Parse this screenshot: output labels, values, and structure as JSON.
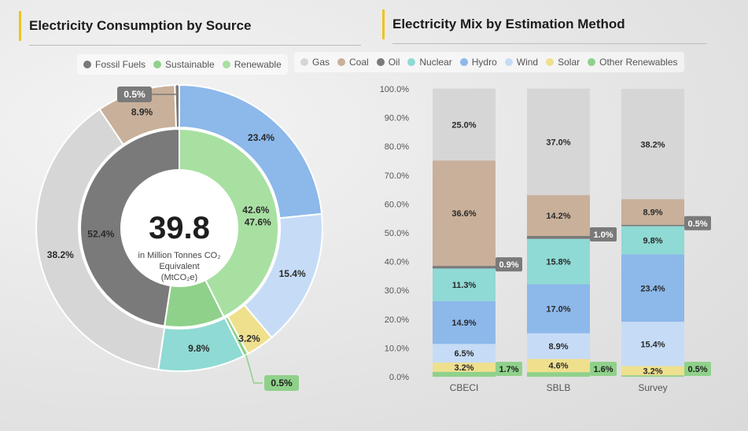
{
  "left": {
    "title": "Electricity Consumption by Source",
    "legend": [
      {
        "name": "Fossil Fuels",
        "color": "#7a7a7a"
      },
      {
        "name": "Sustainable",
        "color": "#8fd18a"
      },
      {
        "name": "Renewable",
        "color": "#a8e0a2"
      }
    ],
    "center_value": "39.8",
    "center_unit_line1": "in Million Tonnes CO₂",
    "center_unit_line2": "Equivalent",
    "center_unit_line3": "(MtCO₂e)"
  },
  "right": {
    "title": "Electricity Mix by Estimation Method",
    "legend": [
      {
        "name": "Gas",
        "color": "#d6d6d6"
      },
      {
        "name": "Coal",
        "color": "#c8b09a"
      },
      {
        "name": "Oil",
        "color": "#7a7a7a"
      },
      {
        "name": "Nuclear",
        "color": "#8fdad4"
      },
      {
        "name": "Hydro",
        "color": "#8db8ea"
      },
      {
        "name": "Wind",
        "color": "#c6dcf6"
      },
      {
        "name": "Solar",
        "color": "#efe08e"
      },
      {
        "name": "Other Renewables",
        "color": "#8fd18a"
      }
    ]
  },
  "chart_data": [
    {
      "type": "pie",
      "title": "Electricity Consumption by Source",
      "inner_ring": [
        {
          "name": "Fossil Fuels",
          "value": 47.6,
          "label": "47.6%",
          "color": "#7a7a7a"
        },
        {
          "name": "Sustainable",
          "value": 52.4,
          "label": "52.4%",
          "color": "#8fd18a"
        }
      ],
      "middle_ring": [
        {
          "name": "Renewable",
          "value": 42.6,
          "label": "42.6%",
          "color": "#a8e0a2"
        },
        {
          "name": "Sustainable",
          "value": 9.8,
          "label": "",
          "color": "#8fd18a"
        },
        {
          "name": "Fossil Fuels",
          "value": 47.6,
          "label": "",
          "color": "#7a7a7a"
        }
      ],
      "outer_ring": [
        {
          "name": "Hydro",
          "value": 23.4,
          "label": "23.4%",
          "color": "#8db8ea"
        },
        {
          "name": "Wind",
          "value": 15.4,
          "label": "15.4%",
          "color": "#c6dcf6"
        },
        {
          "name": "Solar",
          "value": 3.2,
          "label": "3.2%",
          "color": "#efe08e"
        },
        {
          "name": "Other Renewables",
          "value": 0.5,
          "label": "0.5%",
          "color": "#8fd18a"
        },
        {
          "name": "Nuclear",
          "value": 9.8,
          "label": "9.8%",
          "color": "#8fdad4"
        },
        {
          "name": "Gas",
          "value": 38.2,
          "label": "38.2%",
          "color": "#d6d6d6"
        },
        {
          "name": "Coal",
          "value": 8.9,
          "label": "8.9%",
          "color": "#c8b09a"
        },
        {
          "name": "Oil",
          "value": 0.5,
          "label": "0.5%",
          "color": "#7a7a7a"
        }
      ]
    },
    {
      "type": "bar",
      "stacked": true,
      "title": "Electricity Mix by Estimation Method",
      "categories": [
        "CBECI",
        "SBLB",
        "Survey"
      ],
      "ylim": [
        0,
        100
      ],
      "yticks": [
        "0.0%",
        "10.0%",
        "20.0%",
        "30.0%",
        "40.0%",
        "50.0%",
        "60.0%",
        "70.0%",
        "80.0%",
        "90.0%",
        "100.0%"
      ],
      "series": [
        {
          "name": "Other Renewables",
          "color": "#8fd18a",
          "values": [
            1.7,
            1.6,
            0.5
          ],
          "labels": [
            "1.7%",
            "1.6%",
            "0.5%"
          ]
        },
        {
          "name": "Solar",
          "color": "#efe08e",
          "values": [
            3.2,
            4.6,
            3.2
          ],
          "labels": [
            "3.2%",
            "4.6%",
            "3.2%"
          ]
        },
        {
          "name": "Wind",
          "color": "#c6dcf6",
          "values": [
            6.5,
            8.9,
            15.4
          ],
          "labels": [
            "6.5%",
            "8.9%",
            "15.4%"
          ]
        },
        {
          "name": "Hydro",
          "color": "#8db8ea",
          "values": [
            14.9,
            17.0,
            23.4
          ],
          "labels": [
            "14.9%",
            "17.0%",
            "23.4%"
          ]
        },
        {
          "name": "Nuclear",
          "color": "#8fdad4",
          "values": [
            11.3,
            15.8,
            9.8
          ],
          "labels": [
            "11.3%",
            "15.8%",
            "9.8%"
          ]
        },
        {
          "name": "Oil",
          "color": "#7a7a7a",
          "values": [
            0.9,
            1.0,
            0.5
          ],
          "labels": [
            "0.9%",
            "1.0%",
            "0.5%"
          ]
        },
        {
          "name": "Coal",
          "color": "#c8b09a",
          "values": [
            36.6,
            14.2,
            8.9
          ],
          "labels": [
            "36.6%",
            "14.2%",
            "8.9%"
          ]
        },
        {
          "name": "Gas",
          "color": "#d6d6d6",
          "values": [
            25.0,
            37.0,
            38.2
          ],
          "labels": [
            "25.0%",
            "37.0%",
            "38.2%"
          ]
        }
      ]
    }
  ]
}
